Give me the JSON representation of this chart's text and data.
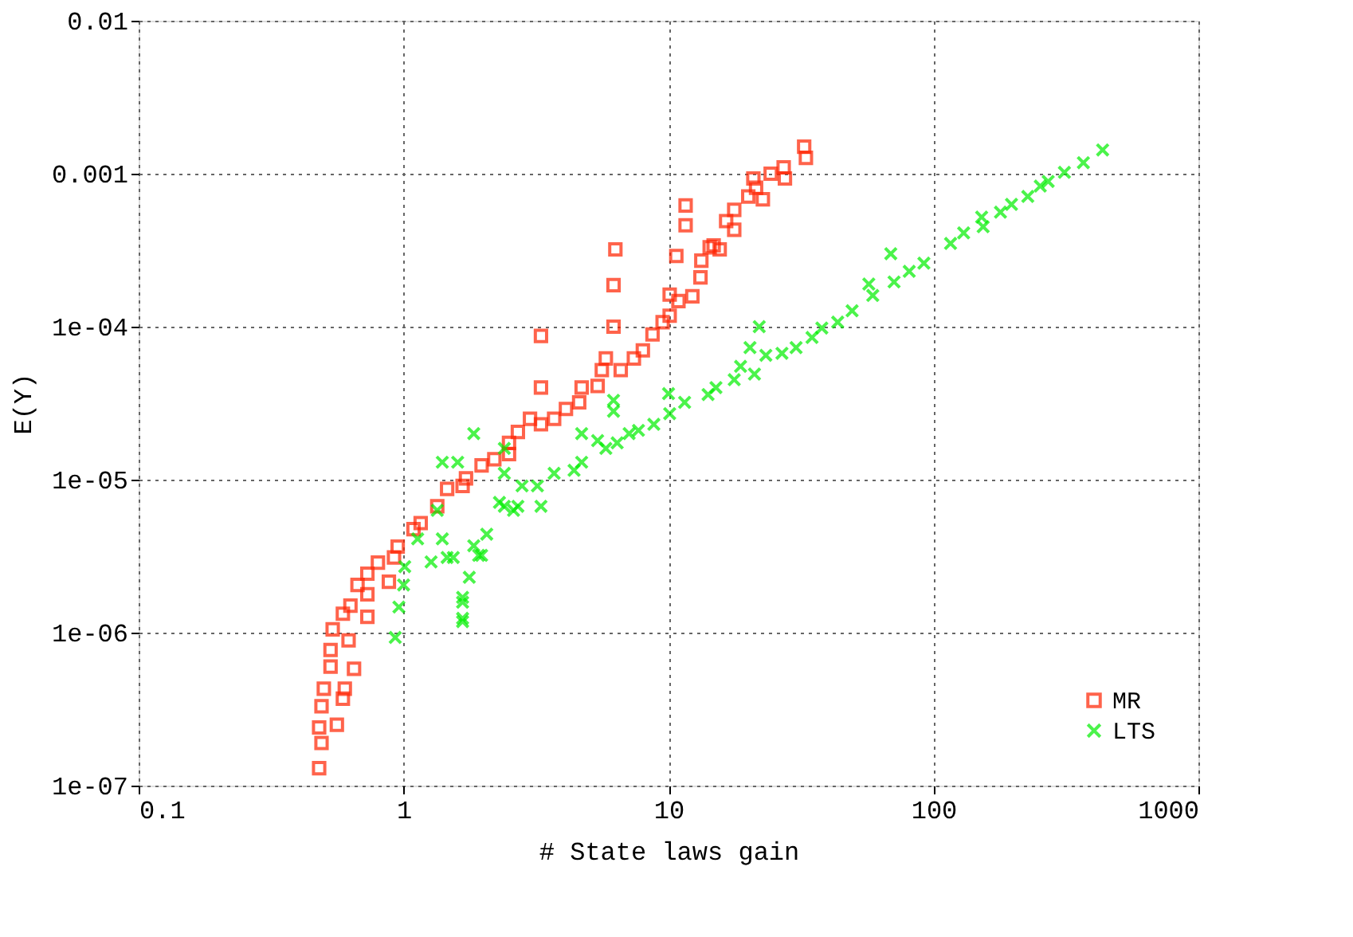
{
  "chart_data": {
    "type": "scatter",
    "xlabel": "# State laws gain",
    "ylabel": "E(Y)",
    "log": "xy",
    "grid": true,
    "legend": "bottom right",
    "xlim": [
      0.1,
      1000
    ],
    "xticks": [
      0.1,
      1,
      10,
      100,
      1000
    ],
    "ylim": [
      1e-07,
      0.01
    ],
    "yticks": [
      {
        "value": 1e-07,
        "label": "1e-07"
      },
      {
        "value": 1e-06,
        "label": "1e-06"
      },
      {
        "value": 1e-05,
        "label": "1e-05"
      },
      {
        "value": 0.0001,
        "label": "1e-04"
      },
      {
        "value": 0.001,
        "label": "0.001"
      },
      {
        "value": 0.01,
        "label": "0.01"
      }
    ],
    "series": [
      {
        "name": "MR",
        "color": "#ff2200",
        "marker": "square",
        "x": [
          0.48,
          0.49,
          0.48,
          0.56,
          0.49,
          0.59,
          0.5,
          0.6,
          0.65,
          0.53,
          0.53,
          0.62,
          0.54,
          0.73,
          0.59,
          0.63,
          0.73,
          0.67,
          0.88,
          0.73,
          0.8,
          0.92,
          0.95,
          1.09,
          1.16,
          1.34,
          1.46,
          1.67,
          1.72,
          2.2,
          2.5,
          1.97,
          2.5,
          2.7,
          3.0,
          3.3,
          3.7,
          4.1,
          4.6,
          4.7,
          3.3,
          3.3,
          5.4,
          5.6,
          5.8,
          6.6,
          7.4,
          8.0,
          8.7,
          9.5,
          10.1,
          10.1,
          10.9,
          12.3,
          13.2,
          13.3,
          14.3,
          6.2,
          6.2,
          6.3,
          11.6,
          11.6,
          10.7,
          14.8,
          15.6,
          16.5,
          17.7,
          17.7,
          20,
          20.9,
          21.4,
          22.7,
          24.3,
          27.2,
          27.5,
          32.5,
          33
        ],
        "values": [
          1.3e-07,
          1.9e-07,
          2.4e-07,
          2.5e-07,
          3.3e-07,
          3.7e-07,
          4.3e-07,
          4.3e-07,
          5.8e-07,
          6e-07,
          7.7e-07,
          8.9e-07,
          1.05e-06,
          1.27e-06,
          1.33e-06,
          1.5e-06,
          1.78e-06,
          2.05e-06,
          2.15e-06,
          2.43e-06,
          2.87e-06,
          3.1e-06,
          3.65e-06,
          4.75e-06,
          5.2e-06,
          6.7e-06,
          8.7e-06,
          9.1e-06,
          1.02e-05,
          1.36e-05,
          1.47e-05,
          1.24e-05,
          1.74e-05,
          2.05e-05,
          2.5e-05,
          2.3e-05,
          2.5e-05,
          2.9e-05,
          3.2e-05,
          4e-05,
          4e-05,
          8.7e-05,
          4.1e-05,
          5.2e-05,
          6.2e-05,
          5.2e-05,
          6.2e-05,
          7e-05,
          8.9e-05,
          0.000107,
          0.000118,
          0.000162,
          0.000147,
          0.000158,
          0.00021,
          0.00027,
          0.00033,
          0.0001,
          0.000187,
          0.00032,
          0.00062,
          0.00046,
          0.00029,
          0.00034,
          0.00032,
          0.00049,
          0.00043,
          0.00058,
          0.00071,
          0.00093,
          0.00081,
          0.00068,
          0.001,
          0.0011,
          0.00093,
          0.0015,
          0.00127
        ]
      },
      {
        "name": "LTS",
        "color": "#00ee00",
        "marker": "cross",
        "x": [
          0.93,
          0.96,
          1.0,
          1.01,
          1.67,
          1.67,
          1.77,
          1.92,
          1.54,
          1.27,
          1.4,
          1.6,
          1.34,
          1.13,
          1.4,
          2.06,
          2.3,
          2.4,
          2.4,
          2.7,
          1.46,
          1.84,
          1.67,
          1.67,
          1.97,
          2.4,
          2.6,
          2.8,
          3.2,
          3.3,
          3.7,
          4.4,
          4.7,
          4.7,
          5.4,
          5.8,
          6.4,
          7.1,
          7.7,
          6.2,
          6.2,
          8.8,
          10.1,
          11.5,
          14.1,
          10,
          1.84,
          15.1,
          17.7,
          18.7,
          21.1,
          23.3,
          26.8,
          30.3,
          34.8,
          37.9,
          43.5,
          49.3,
          59,
          57,
          71,
          81,
          92,
          116,
          130,
          154,
          152,
          179,
          197,
          227,
          253,
          271,
          312,
          368,
          435,
          69,
          22,
          20.3
        ],
        "values": [
          9.3e-07,
          1.47e-06,
          2.05e-06,
          2.7e-06,
          1.24e-06,
          1.7e-06,
          2.3e-06,
          3.2e-06,
          3.1e-06,
          2.9e-06,
          1.3e-05,
          1.3e-05,
          6.3e-06,
          4.1e-06,
          4.1e-06,
          4.4e-06,
          7.1e-06,
          1.1e-05,
          1.6e-05,
          6.7e-06,
          3.1e-06,
          3.7e-06,
          1.58e-06,
          1.18e-06,
          3.2e-06,
          6.7e-06,
          6.3e-06,
          9.1e-06,
          9.1e-06,
          6.7e-06,
          1.1e-05,
          1.15e-05,
          1.3e-05,
          2e-05,
          1.8e-05,
          1.6e-05,
          1.74e-05,
          2e-05,
          2.1e-05,
          2.8e-05,
          3.3e-05,
          2.3e-05,
          2.7e-05,
          3.2e-05,
          3.6e-05,
          3.65e-05,
          2e-05,
          4e-05,
          4.5e-05,
          5.5e-05,
          4.9e-05,
          6.5e-05,
          6.7e-05,
          7.3e-05,
          8.5e-05,
          9.8e-05,
          0.000107,
          0.000127,
          0.00016,
          0.00019,
          0.000196,
          0.00023,
          0.00026,
          0.00035,
          0.00041,
          0.00045,
          0.00052,
          0.00056,
          0.00063,
          0.00071,
          0.00083,
          0.00089,
          0.00102,
          0.00118,
          0.00143,
          0.0003,
          0.0001,
          7.3e-05
        ]
      }
    ]
  }
}
